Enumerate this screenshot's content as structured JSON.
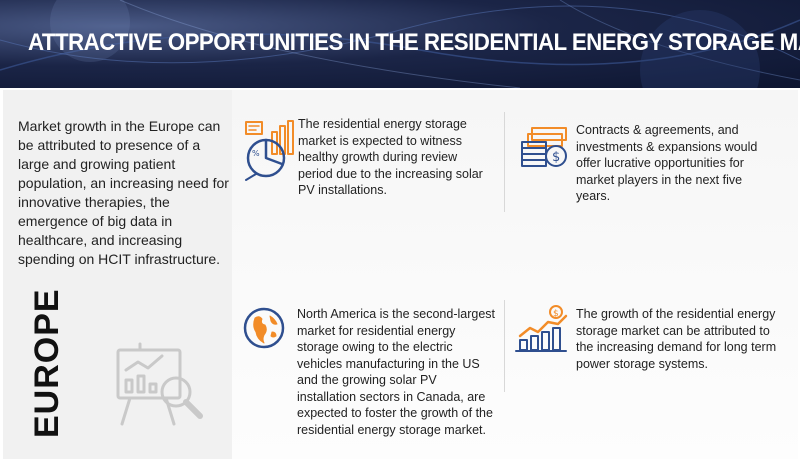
{
  "header": {
    "title": "ATTRACTIVE OPPORTUNITIES IN THE RESIDENTIAL ENERGY STORAGE MARKET"
  },
  "left": {
    "description": "Market growth in the Europe can be attributed to presence of a large and growing patient population, an increasing need for innovative therapies, the emergence of big data in healthcare, and increasing spending on HCIT infrastructure.",
    "region_label": "EUROPE",
    "illustration_icon": "presentation-chart-magnifier-icon"
  },
  "cards": [
    {
      "icon": "report-pie-chart-icon",
      "text": "The residential energy storage market is expected to witness healthy growth during review period due to the increasing solar PV installations."
    },
    {
      "icon": "money-dollar-icon",
      "text": "Contracts & agreements, and investments & expansions would offer lucrative opportunities for market players in the next five years."
    },
    {
      "icon": "globe-icon",
      "text": "North America is the second-largest market for residential energy storage owing to the electric vehicles manufacturing in the US and the growing solar PV installation sectors in Canada, are expected to foster the growth of the residential energy storage market."
    },
    {
      "icon": "growth-bar-chart-icon",
      "text": "The growth of the residential energy storage market can be attributed to the increasing demand for long term power storage systems."
    }
  ],
  "colors": {
    "header_bg": "#1b2547",
    "icon_blue": "#2f4f8f",
    "icon_orange": "#f28c28",
    "left_panel_bg": "#f1f1f1"
  }
}
